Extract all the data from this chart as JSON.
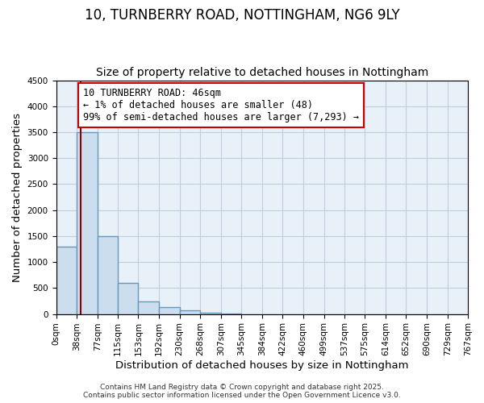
{
  "title_line1": "10, TURNBERRY ROAD, NOTTINGHAM, NG6 9LY",
  "title_line2": "Size of property relative to detached houses in Nottingham",
  "xlabel": "Distribution of detached houses by size in Nottingham",
  "ylabel": "Number of detached properties",
  "bin_edges": [
    0,
    38,
    77,
    115,
    153,
    192,
    230,
    268,
    307,
    345,
    384,
    422,
    460,
    499,
    537,
    575,
    614,
    652,
    690,
    729,
    767
  ],
  "bar_heights": [
    1300,
    3500,
    1500,
    600,
    240,
    130,
    70,
    30,
    10,
    0,
    0,
    0,
    0,
    0,
    0,
    0,
    0,
    0,
    0,
    0
  ],
  "bar_color": "#ccdded",
  "bar_edge_color": "#6699bb",
  "bar_edge_width": 1.0,
  "grid_color": "#c0cfe0",
  "plot_bg_color": "#e8f0f8",
  "figure_bg_color": "#ffffff",
  "red_line_x": 46,
  "ylim": [
    0,
    4500
  ],
  "yticks": [
    0,
    500,
    1000,
    1500,
    2000,
    2500,
    3000,
    3500,
    4000,
    4500
  ],
  "annotation_text": "10 TURNBERRY ROAD: 46sqm\n← 1% of detached houses are smaller (48)\n99% of semi-detached houses are larger (7,293) →",
  "annotation_box_color": "#ffffff",
  "annotation_box_edge_color": "#cc0000",
  "footer_line1": "Contains HM Land Registry data © Crown copyright and database right 2025.",
  "footer_line2": "Contains public sector information licensed under the Open Government Licence v3.0.",
  "title_fontsize": 12,
  "subtitle_fontsize": 10,
  "tick_label_fontsize": 7.5,
  "axis_label_fontsize": 9.5,
  "annotation_fontsize": 8.5,
  "footer_fontsize": 6.5
}
